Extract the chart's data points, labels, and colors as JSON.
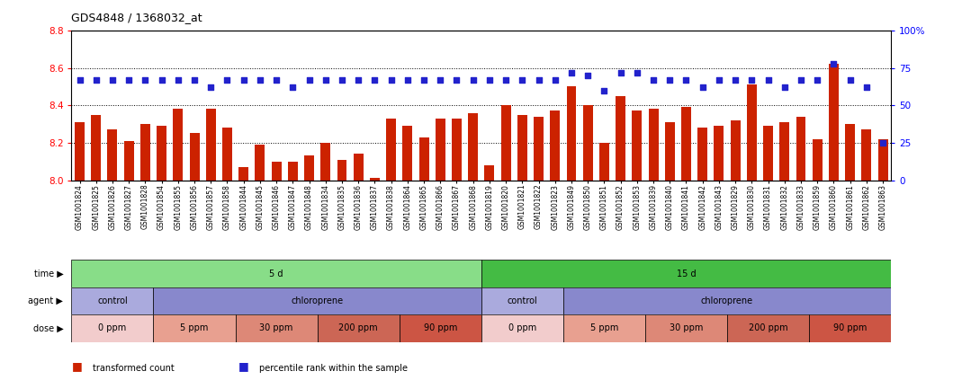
{
  "title": "GDS4848 / 1368032_at",
  "samples": [
    "GSM1001824",
    "GSM1001825",
    "GSM1001826",
    "GSM1001827",
    "GSM1001828",
    "GSM1001854",
    "GSM1001855",
    "GSM1001856",
    "GSM1001857",
    "GSM1001858",
    "GSM1001844",
    "GSM1001845",
    "GSM1001846",
    "GSM1001847",
    "GSM1001848",
    "GSM1001834",
    "GSM1001835",
    "GSM1001836",
    "GSM1001837",
    "GSM1001838",
    "GSM1001864",
    "GSM1001865",
    "GSM1001866",
    "GSM1001867",
    "GSM1001868",
    "GSM1001819",
    "GSM1001820",
    "GSM1001821",
    "GSM1001822",
    "GSM1001823",
    "GSM1001849",
    "GSM1001850",
    "GSM1001851",
    "GSM1001852",
    "GSM1001853",
    "GSM1001839",
    "GSM1001840",
    "GSM1001841",
    "GSM1001842",
    "GSM1001843",
    "GSM1001829",
    "GSM1001830",
    "GSM1001831",
    "GSM1001832",
    "GSM1001833",
    "GSM1001859",
    "GSM1001860",
    "GSM1001861",
    "GSM1001862",
    "GSM1001863"
  ],
  "bar_values": [
    8.31,
    8.35,
    8.27,
    8.21,
    8.3,
    8.29,
    8.38,
    8.25,
    8.38,
    8.28,
    8.07,
    8.19,
    8.1,
    8.1,
    8.13,
    8.2,
    8.11,
    8.14,
    8.01,
    8.33,
    8.29,
    8.23,
    8.33,
    8.33,
    8.36,
    8.08,
    8.4,
    8.35,
    8.34,
    8.37,
    8.5,
    8.4,
    8.2,
    8.45,
    8.37,
    8.38,
    8.31,
    8.39,
    8.28,
    8.29,
    8.32,
    8.51,
    8.29,
    8.31,
    8.34,
    8.22,
    8.62,
    8.3,
    8.27,
    8.22
  ],
  "percentile_values": [
    67,
    67,
    67,
    67,
    67,
    67,
    67,
    67,
    62,
    67,
    67,
    67,
    67,
    62,
    67,
    67,
    67,
    67,
    67,
    67,
    67,
    67,
    67,
    67,
    67,
    67,
    67,
    67,
    67,
    67,
    72,
    70,
    60,
    72,
    72,
    67,
    67,
    67,
    62,
    67,
    67,
    67,
    67,
    62,
    67,
    67,
    78,
    67,
    62,
    25
  ],
  "ylim_left": [
    8.0,
    8.8
  ],
  "ylim_right": [
    0,
    100
  ],
  "yticks_left": [
    8.0,
    8.2,
    8.4,
    8.6,
    8.8
  ],
  "yticks_right": [
    0,
    25,
    50,
    75,
    100
  ],
  "bar_color": "#cc2200",
  "dot_color": "#2222cc",
  "background_color": "#ffffff",
  "plot_bg_color": "#ffffff",
  "time_row": [
    {
      "label": "5 d",
      "start": 0,
      "end": 25,
      "color": "#88dd88"
    },
    {
      "label": "15 d",
      "start": 25,
      "end": 50,
      "color": "#44bb44"
    }
  ],
  "agent_row": [
    {
      "label": "control",
      "start": 0,
      "end": 5,
      "color": "#aaaadd"
    },
    {
      "label": "chloroprene",
      "start": 5,
      "end": 25,
      "color": "#8888cc"
    },
    {
      "label": "control",
      "start": 25,
      "end": 30,
      "color": "#aaaadd"
    },
    {
      "label": "chloroprene",
      "start": 30,
      "end": 50,
      "color": "#8888cc"
    }
  ],
  "dose_row": [
    {
      "label": "0 ppm",
      "start": 0,
      "end": 5,
      "color": "#f2cccc"
    },
    {
      "label": "5 ppm",
      "start": 5,
      "end": 10,
      "color": "#e8a090"
    },
    {
      "label": "30 ppm",
      "start": 10,
      "end": 15,
      "color": "#dd8877"
    },
    {
      "label": "200 ppm",
      "start": 15,
      "end": 20,
      "color": "#cc6655"
    },
    {
      "label": "90 ppm",
      "start": 20,
      "end": 25,
      "color": "#cc5544"
    },
    {
      "label": "0 ppm",
      "start": 25,
      "end": 30,
      "color": "#f2cccc"
    },
    {
      "label": "5 ppm",
      "start": 30,
      "end": 35,
      "color": "#e8a090"
    },
    {
      "label": "30 ppm",
      "start": 35,
      "end": 40,
      "color": "#dd8877"
    },
    {
      "label": "200 ppm",
      "start": 40,
      "end": 45,
      "color": "#cc6655"
    },
    {
      "label": "90 ppm",
      "start": 45,
      "end": 50,
      "color": "#cc5544"
    }
  ],
  "legend_items": [
    {
      "label": "transformed count",
      "color": "#cc2200"
    },
    {
      "label": "percentile rank within the sample",
      "color": "#2222cc"
    }
  ],
  "row_labels": [
    "time",
    "agent",
    "dose"
  ]
}
